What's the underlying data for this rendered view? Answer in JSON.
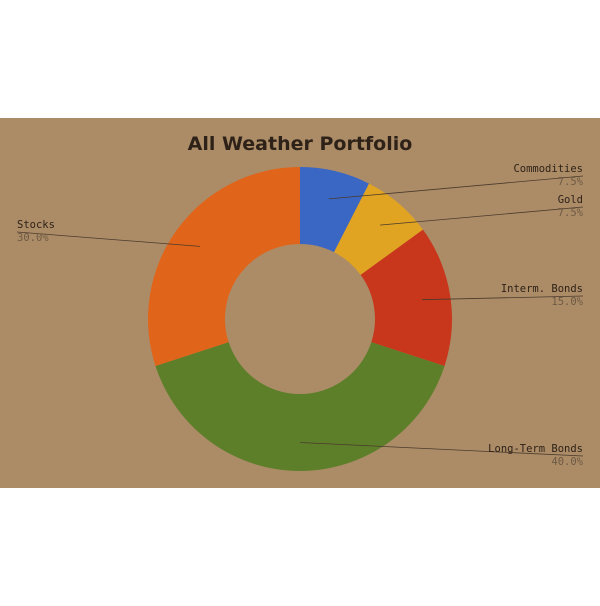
{
  "chart_data": {
    "type": "pie",
    "variant": "donut",
    "title": "All Weather Portfolio",
    "slices": [
      {
        "label": "Commodities",
        "value": 7.5,
        "display": "7.5%",
        "color": "#3a66c4",
        "side": "right"
      },
      {
        "label": "Gold",
        "value": 7.5,
        "display": "7.5%",
        "color": "#e0a322",
        "side": "right"
      },
      {
        "label": "Interm. Bonds",
        "value": 15.0,
        "display": "15.0%",
        "color": "#c8361c",
        "side": "right"
      },
      {
        "label": "Long-Term Bonds",
        "value": 40.0,
        "display": "40.0%",
        "color": "#5e7f2a",
        "side": "right"
      },
      {
        "label": "Stocks",
        "value": 30.0,
        "display": "30.0%",
        "color": "#e0641a",
        "side": "left"
      }
    ],
    "start_angle": "12 o'clock",
    "direction": "clockwise"
  },
  "colors": {
    "panel_background": "#ac8c67",
    "page_background": "#ffffff"
  }
}
